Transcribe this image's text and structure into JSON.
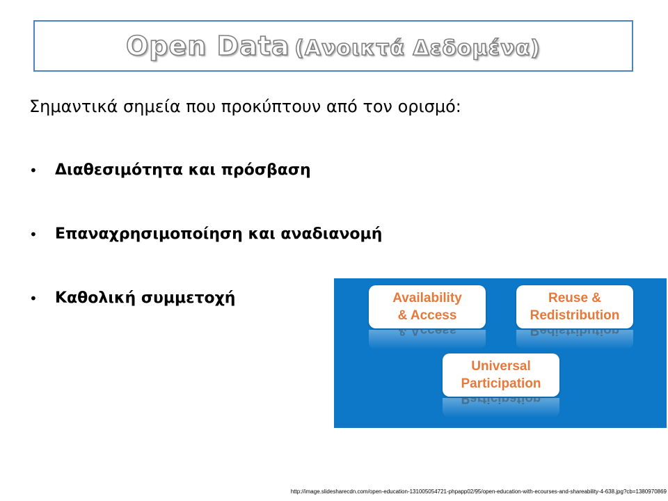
{
  "title": {
    "main": "Open Data",
    "sub": "(Ανοικτά Δεδομένα)"
  },
  "intro": "Σημαντικά σημεία που προκύπτουν από τον ορισμό:",
  "bullets": [
    {
      "label": "Διαθεσιμότητα και πρόσβαση"
    },
    {
      "label": "Επαναχρησιμοποίηση και αναδιανομή"
    },
    {
      "label": "Καθολική συμμετοχή"
    }
  ],
  "bullet_symbol": "•",
  "diagram": {
    "background_color": "#0e78c8",
    "text_color": "#e8773a",
    "cards": [
      {
        "line1": "Availability",
        "line2": "& Access"
      },
      {
        "line1": "Reuse &",
        "line2": "Redistribution"
      },
      {
        "line1": "Universal",
        "line2": "Participation"
      }
    ]
  },
  "source_url": "http://image.slidesharecdn.com/open-education-131005054721-phpapp02/95/open-education-with-ecourses-and-shareability-4-638.jpg?cb=1380970869"
}
